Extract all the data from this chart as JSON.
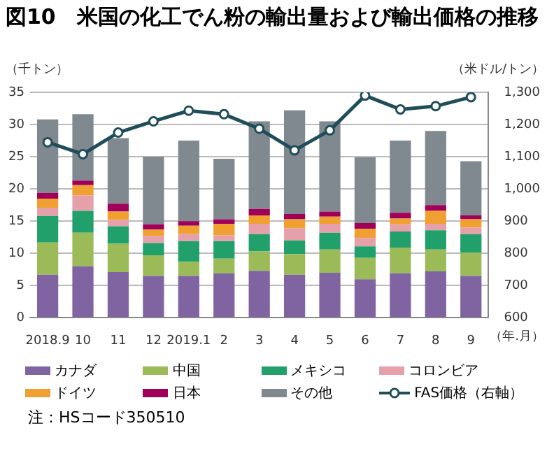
{
  "chart_data": {
    "type": "bar",
    "stacked": true,
    "title": "図10　米国の化工でん粉の輸出量および輸出価格の推移",
    "ylabel": "（千トン）",
    "y2label": "（米ドル/トン）",
    "xlabel": "（年.月）",
    "categories": [
      "2018.9",
      "10",
      "11",
      "12",
      "2019.1",
      "2",
      "3",
      "4",
      "5",
      "6",
      "7",
      "8",
      "9"
    ],
    "series": [
      {
        "name": "カナダ",
        "color": "#8064a2",
        "values": [
          6.7,
          8.0,
          7.1,
          6.5,
          6.5,
          6.9,
          7.3,
          6.7,
          7.0,
          6.0,
          6.9,
          7.2,
          6.5
        ]
      },
      {
        "name": "中国",
        "color": "#9bbb59",
        "values": [
          5.0,
          5.2,
          4.4,
          3.2,
          2.2,
          2.3,
          3.0,
          3.2,
          3.6,
          3.3,
          4.0,
          3.4,
          3.6
        ]
      },
      {
        "name": "メキシコ",
        "color": "#22a06c",
        "values": [
          4.1,
          3.4,
          2.7,
          1.9,
          3.2,
          2.7,
          2.7,
          2.1,
          2.6,
          1.8,
          2.5,
          3.0,
          2.9
        ]
      },
      {
        "name": "コロンビア",
        "color": "#e6a0aa",
        "values": [
          1.3,
          2.4,
          1.0,
          1.1,
          1.1,
          0.9,
          1.6,
          1.9,
          1.4,
          1.3,
          1.1,
          1.0,
          1.0
        ]
      },
      {
        "name": "ドイツ",
        "color": "#f0a030",
        "values": [
          1.4,
          1.6,
          1.3,
          1.0,
          1.3,
          1.8,
          1.3,
          1.4,
          1.1,
          1.4,
          0.9,
          2.0,
          1.3
        ]
      },
      {
        "name": "日本",
        "color": "#a0005a",
        "values": [
          0.9,
          0.7,
          1.2,
          0.8,
          0.7,
          0.7,
          1.0,
          0.8,
          0.8,
          0.9,
          0.9,
          0.9,
          0.6
        ]
      },
      {
        "name": "その他",
        "color": "#808890",
        "values": [
          11.4,
          10.3,
          10.2,
          10.5,
          12.5,
          9.4,
          13.6,
          16.1,
          14.0,
          10.2,
          11.2,
          11.5,
          8.4
        ]
      },
      {
        "name": "FAS価格（右軸）",
        "type": "line",
        "axis": "y2",
        "color": "#1f4e5a",
        "values": [
          1145,
          1108,
          1175,
          1210,
          1243,
          1232,
          1187,
          1120,
          1182,
          1290,
          1247,
          1257,
          1285
        ]
      }
    ],
    "ylim": [
      0,
      35
    ],
    "yticks": [
      0,
      5,
      10,
      15,
      20,
      25,
      30,
      35
    ],
    "y2lim": [
      600,
      1300
    ],
    "y2ticks": [
      600,
      700,
      800,
      900,
      {
        "value": 1000,
        "label": "1,000"
      },
      {
        "value": 1100,
        "label": "1,100"
      },
      {
        "value": 1200,
        "label": "1,200"
      },
      {
        "value": 1300,
        "label": "1,300"
      }
    ],
    "grid": "y",
    "legend": "bottom",
    "marker": "circle",
    "line_style": "solid",
    "annotations": [
      "注：HSコード350510"
    ]
  }
}
